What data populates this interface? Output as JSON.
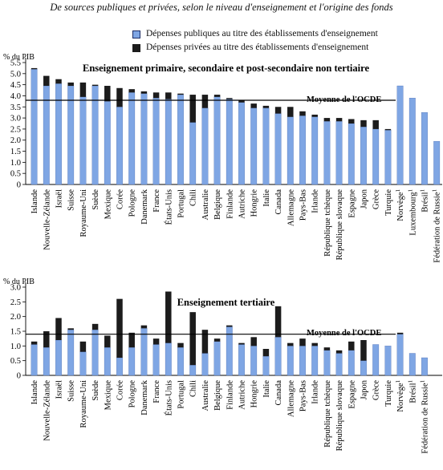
{
  "header": {
    "title": "De sources publiques et privées, selon le niveau d'enseignement et l'origine des fonds"
  },
  "legend": {
    "public": "Dépenses publiques au titre des établissements d'enseignement",
    "private": "Dépenses privées au titre des établissements d'enseignement"
  },
  "colors": {
    "public": "#7fa6e4",
    "private": "#1c1c1c",
    "oecd_line": "#000000"
  },
  "chart_data": [
    {
      "type": "bar",
      "stacked": true,
      "title": "Enseignement primaire, secondaire et post-secondaire non tertiaire",
      "ylabel": "% du PIB",
      "ylim": [
        0,
        5.5
      ],
      "yticks": [
        "0",
        "0.5",
        "1.0",
        "1.5",
        "2.0",
        "2.5",
        "3.0",
        "3.5",
        "4.0",
        "4.5",
        "5.0",
        "5.5"
      ],
      "grid": false,
      "reference_line": {
        "label": "Moyenne de l'OCDE",
        "value": 3.8
      },
      "categories": [
        "Islande",
        "Nouvelle-Zélande",
        "Israël",
        "Suisse",
        "Royaume-Uni",
        "Suède",
        "Mexique",
        "Corée",
        "Pologne",
        "Danemark",
        "France",
        "États-Unis",
        "Portugal",
        "Chili",
        "Australie",
        "Belgique",
        "Finlande",
        "Autriche",
        "Hongrie",
        "Italie",
        "Canada",
        "Allemagne",
        "Pays-Bas",
        "Irlande",
        "République tchèque",
        "République slovaque",
        "Espagne",
        "Japon",
        "Grèce",
        "Turquie",
        "Norvège",
        "Luxembourg",
        "Brésil",
        "Fédération de Russie"
      ],
      "category_notes": {
        "Norvège": "1",
        "Luxembourg": "1",
        "Brésil": "1",
        "Fédération de Russie": "1"
      },
      "series": [
        {
          "name": "Dépenses publiques au titre des établissements d'enseignement",
          "values": [
            5.2,
            4.45,
            4.55,
            4.45,
            3.95,
            4.45,
            3.75,
            3.5,
            4.15,
            4.1,
            3.9,
            3.85,
            4.05,
            2.8,
            3.45,
            3.95,
            3.85,
            3.7,
            3.45,
            3.45,
            3.2,
            3.05,
            3.1,
            3.05,
            2.85,
            2.85,
            2.75,
            2.6,
            2.5,
            2.45,
            4.45,
            3.9,
            3.25,
            1.95
          ]
        },
        {
          "name": "Dépenses privées au titre des établissements d'enseignement",
          "values": [
            0.05,
            0.45,
            0.2,
            0.15,
            0.65,
            0.05,
            0.7,
            0.85,
            0.15,
            0.1,
            0.25,
            0.3,
            0.05,
            1.25,
            0.6,
            0.1,
            0.05,
            0.1,
            0.2,
            0.1,
            0.3,
            0.45,
            0.2,
            0.1,
            0.15,
            0.15,
            0.2,
            0.3,
            0.4,
            0.05,
            0,
            0,
            0,
            0
          ]
        }
      ]
    },
    {
      "type": "bar",
      "stacked": true,
      "title": "Enseignement tertiaire",
      "ylabel": "% du PIB",
      "ylim": [
        0,
        3.0
      ],
      "yticks": [
        "0",
        "0.5",
        "1.0",
        "1.5",
        "2.0",
        "2.5",
        "3.0"
      ],
      "grid": false,
      "reference_line": {
        "label": "Moyenne de l'OCDE",
        "value": 1.4
      },
      "categories": [
        "Islande",
        "Nouvelle-Zélande",
        "Israël",
        "Suisse",
        "Royaume-Uni",
        "Suède",
        "Mexique",
        "Corée",
        "Pologne",
        "Danemark",
        "France",
        "États-Unis",
        "Portugal",
        "Chili",
        "Australie",
        "Belgique",
        "Finlande",
        "Autriche",
        "Hongrie",
        "Italie",
        "Canada",
        "Allemagne",
        "Pays-Bas",
        "Irlande",
        "République tchèque",
        "République slovaque",
        "Espagne",
        "Japon",
        "Grèce",
        "Turquie",
        "Norvège",
        "Brésil",
        "Fédération de Russie"
      ],
      "category_notes": {
        "Norvège": "1",
        "Brésil": "1",
        "Fédération de Russie": "1"
      },
      "series": [
        {
          "name": "Dépenses publiques au titre des établissements d'enseignement",
          "values": [
            1.05,
            0.95,
            1.2,
            1.55,
            0.8,
            1.55,
            0.95,
            0.6,
            0.95,
            1.6,
            1.05,
            1.1,
            0.95,
            0.35,
            0.75,
            1.15,
            1.65,
            1.05,
            1.0,
            0.65,
            1.3,
            1.0,
            1.0,
            1.0,
            0.85,
            0.75,
            0.85,
            0.5,
            1.05,
            1.0,
            1.4,
            0.75,
            0.6
          ]
        },
        {
          "name": "Dépenses privées au titre des établissements d'enseignement",
          "values": [
            0.1,
            0.55,
            0.75,
            0.05,
            0.35,
            0.2,
            0.4,
            2.0,
            0.5,
            0.1,
            0.2,
            1.75,
            0.15,
            1.8,
            0.8,
            0.1,
            0.05,
            0.05,
            0.3,
            0.25,
            1.05,
            0.1,
            0.25,
            0.1,
            0.1,
            0.1,
            0.3,
            0.7,
            0,
            0,
            0.05,
            0,
            0
          ]
        }
      ]
    }
  ]
}
